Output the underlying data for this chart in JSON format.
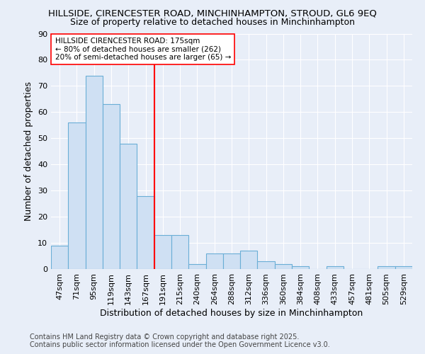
{
  "title_line1": "HILLSIDE, CIRENCESTER ROAD, MINCHINHAMPTON, STROUD, GL6 9EQ",
  "title_line2": "Size of property relative to detached houses in Minchinhampton",
  "xlabel": "Distribution of detached houses by size in Minchinhampton",
  "ylabel": "Number of detached properties",
  "footer": "Contains HM Land Registry data © Crown copyright and database right 2025.\nContains public sector information licensed under the Open Government Licence v3.0.",
  "categories": [
    "47sqm",
    "71sqm",
    "95sqm",
    "119sqm",
    "143sqm",
    "167sqm",
    "191sqm",
    "215sqm",
    "240sqm",
    "264sqm",
    "288sqm",
    "312sqm",
    "336sqm",
    "360sqm",
    "384sqm",
    "408sqm",
    "433sqm",
    "457sqm",
    "481sqm",
    "505sqm",
    "529sqm"
  ],
  "values": [
    9,
    56,
    74,
    63,
    48,
    28,
    13,
    13,
    2,
    6,
    6,
    7,
    3,
    2,
    1,
    0,
    1,
    0,
    0,
    1,
    1
  ],
  "bar_color": "#cfe0f3",
  "bar_edge_color": "#6aaed6",
  "vline_x": 5.5,
  "vline_color": "red",
  "annotation_text": "HILLSIDE CIRENCESTER ROAD: 175sqm\n← 80% of detached houses are smaller (262)\n20% of semi-detached houses are larger (65) →",
  "annotation_box_color": "white",
  "annotation_box_edge": "red",
  "ylim": [
    0,
    90
  ],
  "yticks": [
    0,
    10,
    20,
    30,
    40,
    50,
    60,
    70,
    80,
    90
  ],
  "background_color": "#e8eef8",
  "grid_color": "white",
  "title_fontsize": 9.5,
  "subtitle_fontsize": 9,
  "axis_label_fontsize": 9,
  "tick_fontsize": 8,
  "annotation_fontsize": 7.5,
  "footer_fontsize": 7
}
